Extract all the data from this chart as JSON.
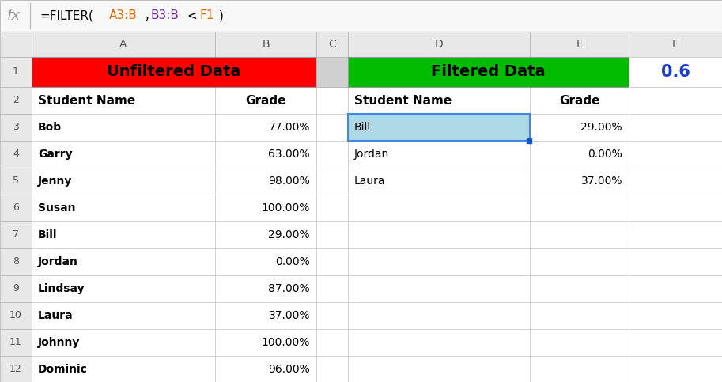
{
  "formula_color_parts": [
    {
      "text": "=FILTER(",
      "color": "#000000"
    },
    {
      "text": "A3:B",
      "color": "#e06c00"
    },
    {
      "text": ",",
      "color": "#000000"
    },
    {
      "text": "B3:B",
      "color": "#7030a0"
    },
    {
      "text": "<",
      "color": "#000000"
    },
    {
      "text": "F1",
      "color": "#e06c00"
    },
    {
      "text": ")",
      "color": "#000000"
    }
  ],
  "col_letters": [
    "",
    "A",
    "B",
    "C",
    "D",
    "E",
    "F"
  ],
  "bg_color": "#ffffff",
  "header_bg": "#e8e8e8",
  "unfiltered_header_bg": "#ff0000",
  "filtered_header_bg": "#00bb00",
  "highlight_cell_bg": "#add8e6",
  "unfiltered_title": "Unfiltered Data",
  "filtered_title": "Filtered Data",
  "col2_header": "Student Name",
  "col3_header": "Grade",
  "col5_header": "Student Name",
  "col6_header": "Grade",
  "unfiltered_names": [
    "Bob",
    "Garry",
    "Jenny",
    "Susan",
    "Bill",
    "Jordan",
    "Lindsay",
    "Laura",
    "Johnny",
    "Dominic"
  ],
  "unfiltered_grades": [
    "77.00%",
    "63.00%",
    "98.00%",
    "100.00%",
    "29.00%",
    "0.00%",
    "87.00%",
    "37.00%",
    "100.00%",
    "96.00%"
  ],
  "filtered_names": [
    "Bill",
    "Jordan",
    "Laura"
  ],
  "filtered_grades": [
    "29.00%",
    "0.00%",
    "37.00%"
  ],
  "f1_value": "0.6",
  "f1_color": "#1a3ccc",
  "grid_line_color": "#c8c8c8",
  "row_num_bg": "#e8e8e8",
  "sep_col_bg": "#d0d0d0"
}
